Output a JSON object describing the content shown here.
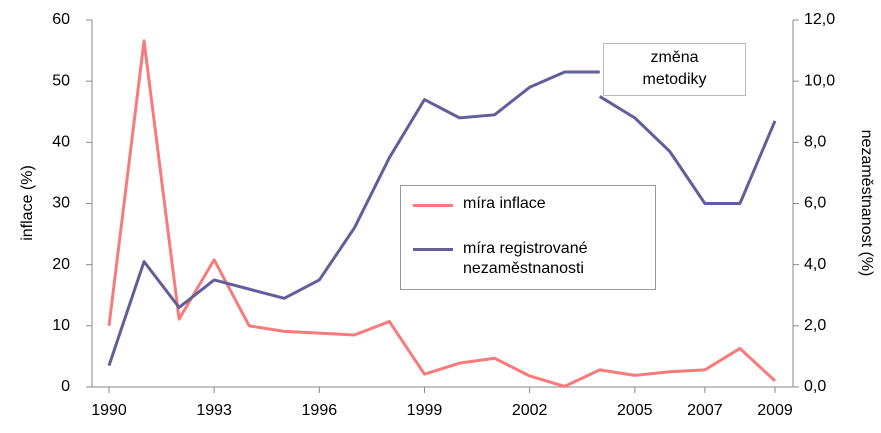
{
  "chart_data": {
    "type": "line",
    "x": [
      1990,
      1991,
      1992,
      1993,
      1994,
      1995,
      1996,
      1997,
      1998,
      1999,
      2000,
      2001,
      2002,
      2003,
      2004,
      2005,
      2006,
      2007,
      2008,
      2009
    ],
    "xlim": [
      1990,
      2009
    ],
    "xticks": [
      1990,
      1993,
      1996,
      1999,
      2002,
      2005,
      2007,
      2009
    ],
    "ylim": [
      0,
      60
    ],
    "yticks": [
      0,
      10,
      20,
      30,
      40,
      50,
      60
    ],
    "y2lim": [
      0,
      12
    ],
    "y2ticks": [
      {
        "value": 0,
        "label": "0,0"
      },
      {
        "value": 2,
        "label": "2,0"
      },
      {
        "value": 4,
        "label": "4,0"
      },
      {
        "value": 6,
        "label": "6,0"
      },
      {
        "value": 8,
        "label": "8,0"
      },
      {
        "value": 10,
        "label": "10,0"
      },
      {
        "value": 12,
        "label": "12,0"
      }
    ],
    "ylabel": "inflace (%)",
    "y2label": "nezaměstnanost (%)",
    "annotation": "změna metodiky",
    "grid": false,
    "series": [
      {
        "name": "míra inflace",
        "color": "#f87a7a",
        "values": [
          10.0,
          56.6,
          11.1,
          20.8,
          10.0,
          9.1,
          8.8,
          8.5,
          10.7,
          2.1,
          3.9,
          4.7,
          1.8,
          0.1,
          2.8,
          1.9,
          2.5,
          2.8,
          6.3,
          1.0
        ]
      },
      {
        "name": "míra registrované nezaměstnanosti",
        "color": "#625e9a",
        "axis": "y2",
        "x": [
          1990,
          1991,
          1992,
          1993,
          1994,
          1995,
          1996,
          1997,
          1998,
          1999,
          2000,
          2001,
          2002,
          2003,
          2004,
          null,
          2004,
          2005,
          2006,
          2007,
          2008,
          2009
        ],
        "values": [
          0.7,
          4.1,
          2.6,
          3.5,
          3.2,
          2.9,
          3.5,
          5.2,
          7.5,
          9.4,
          8.8,
          8.9,
          9.8,
          10.3,
          10.3,
          null,
          9.5,
          8.8,
          7.7,
          6.0,
          6.0,
          8.7
        ]
      }
    ]
  }
}
